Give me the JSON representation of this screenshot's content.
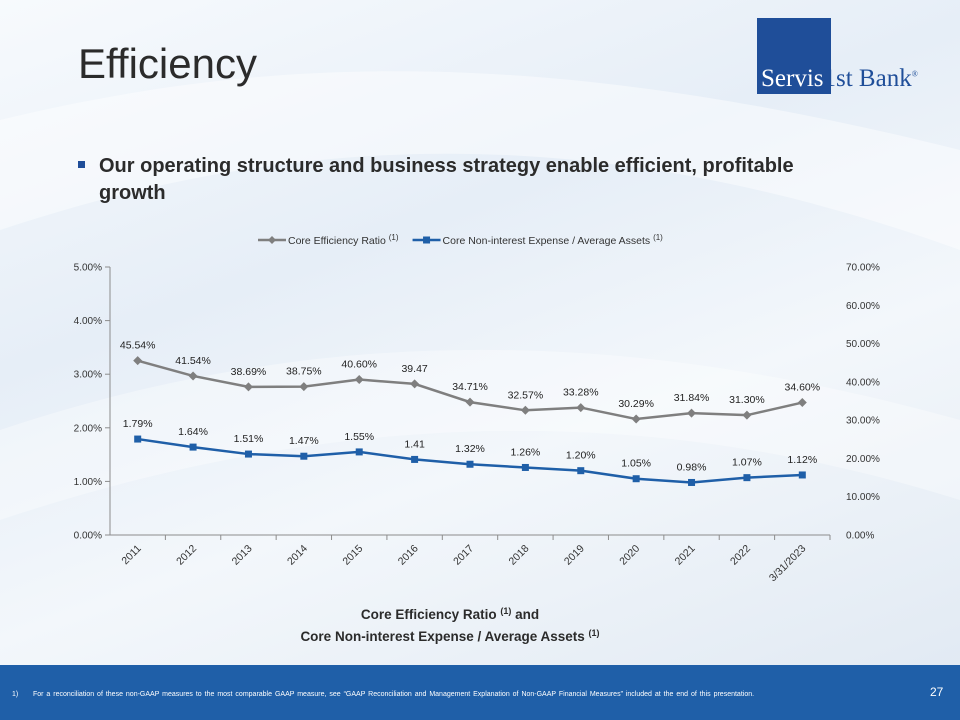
{
  "slide": {
    "title": "Efficiency",
    "bullet": "Our operating structure and business strategy enable efficient, profitable growth",
    "page_number": "27",
    "footnote_marker": "1)",
    "footnote": "For a reconciliation of these non-GAAP measures to the most comparable GAAP measure, see “GAAP Reconciliation and Management Explanation of Non-GAAP Financial Measures” included at the end of this presentation."
  },
  "logo": {
    "part1": "Servis",
    "part2": "1st Bank",
    "mark": "®",
    "color": "#1f4e99"
  },
  "chart_data": {
    "type": "line",
    "caption_line1": "Core Efficiency Ratio",
    "caption_line1_sup": "(1)",
    "caption_line1_suffix": "and",
    "caption_line2": "Core Non-interest Expense / Average Assets",
    "caption_line2_sup": "(1)",
    "categories": [
      "2011",
      "2012",
      "2013",
      "2014",
      "2015",
      "2016",
      "2017",
      "2018",
      "2019",
      "2020",
      "2021",
      "2022",
      "3/31/2023"
    ],
    "left_axis": {
      "min": 0,
      "max": 5,
      "unit": "%",
      "ticks": [
        "0.00%",
        "1.00%",
        "2.00%",
        "3.00%",
        "4.00%",
        "5.00%"
      ]
    },
    "right_axis": {
      "min": 0,
      "max": 70,
      "unit": "%",
      "ticks": [
        "0.00%",
        "10.00%",
        "20.00%",
        "30.00%",
        "40.00%",
        "50.00%",
        "60.00%",
        "70.00%"
      ]
    },
    "legend_position": "top-center",
    "grid": false,
    "series": [
      {
        "name": "Core Efficiency Ratio",
        "name_sup": "(1)",
        "axis": "right",
        "color": "#7f7f7f",
        "marker": "diamond",
        "values": [
          45.54,
          41.54,
          38.69,
          38.75,
          40.6,
          39.47,
          34.71,
          32.57,
          33.28,
          30.29,
          31.84,
          31.3,
          34.6
        ],
        "labels": [
          "45.54%",
          "41.54%",
          "38.69%",
          "38.75%",
          "40.60%",
          "39.47",
          "34.71%",
          "32.57%",
          "33.28%",
          "30.29%",
          "31.84%",
          "31.30%",
          "34.60%"
        ]
      },
      {
        "name": "Core Non-interest Expense / Average Assets",
        "name_sup": "(1)",
        "axis": "left",
        "color": "#1f5fa8",
        "marker": "square",
        "values": [
          1.79,
          1.64,
          1.51,
          1.47,
          1.55,
          1.41,
          1.32,
          1.26,
          1.2,
          1.05,
          0.98,
          1.07,
          1.12
        ],
        "labels": [
          "1.79%",
          "1.64%",
          "1.51%",
          "1.47%",
          "1.55%",
          "1.41",
          "1.32%",
          "1.26%",
          "1.20%",
          "1.05%",
          "0.98%",
          "1.07%",
          "1.12%"
        ]
      }
    ]
  }
}
